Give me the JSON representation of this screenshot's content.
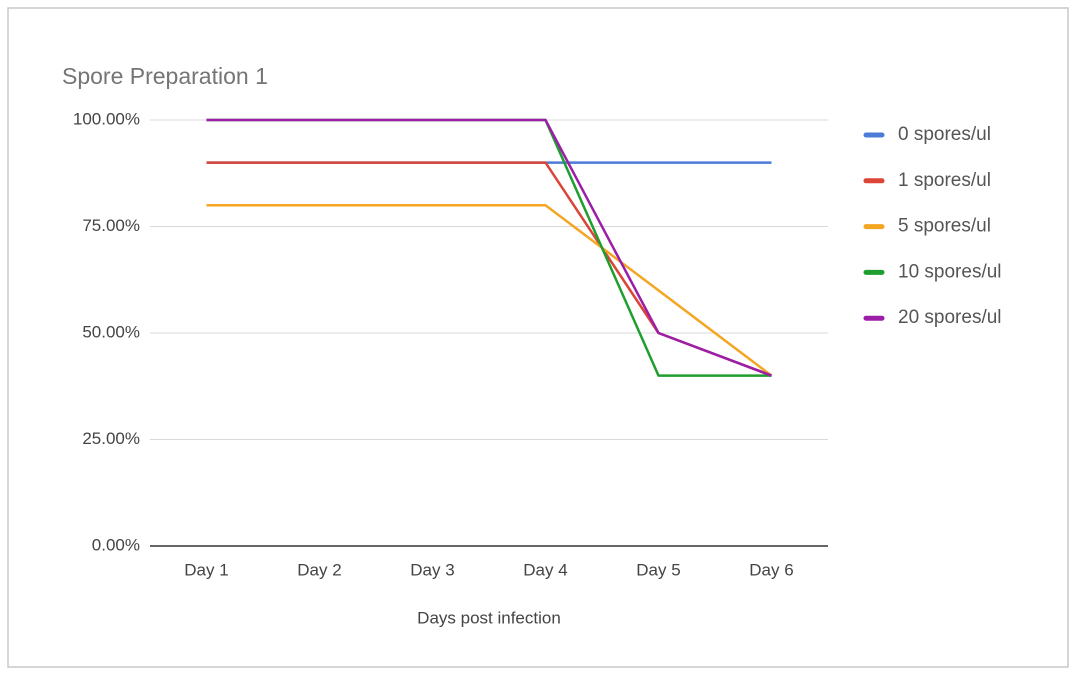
{
  "chart_data": {
    "type": "line",
    "title": "Spore Preparation 1",
    "x_label": "Days post infection",
    "categories": [
      "Day 1",
      "Day 2",
      "Day 3",
      "Day 4",
      "Day 5",
      "Day 6"
    ],
    "series": [
      {
        "name": "0 spores/ul",
        "color": "#4a7bd6",
        "values": [
          90,
          90,
          90,
          90,
          90,
          90
        ]
      },
      {
        "name": "1 spores/ul",
        "color": "#db4437",
        "values": [
          90,
          90,
          90,
          90,
          50,
          40
        ]
      },
      {
        "name": "5 spores/ul",
        "color": "#f4a622",
        "values": [
          80,
          80,
          80,
          80,
          60,
          40
        ]
      },
      {
        "name": "10 spores/ul",
        "color": "#1e9e2e",
        "values": [
          100,
          100,
          100,
          100,
          40,
          40
        ]
      },
      {
        "name": "20 spores/ul",
        "color": "#9c1ea8",
        "values": [
          100,
          100,
          100,
          100,
          50,
          40
        ]
      }
    ],
    "ylim": [
      0,
      100
    ],
    "yticks": [
      {
        "value": 0,
        "label": "0.00%"
      },
      {
        "value": 25,
        "label": "25.00%"
      },
      {
        "value": 50,
        "label": "50.00%"
      },
      {
        "value": 75,
        "label": "75.00%"
      },
      {
        "value": 100,
        "label": "100.00%"
      }
    ],
    "grid": true,
    "legend": "right"
  }
}
